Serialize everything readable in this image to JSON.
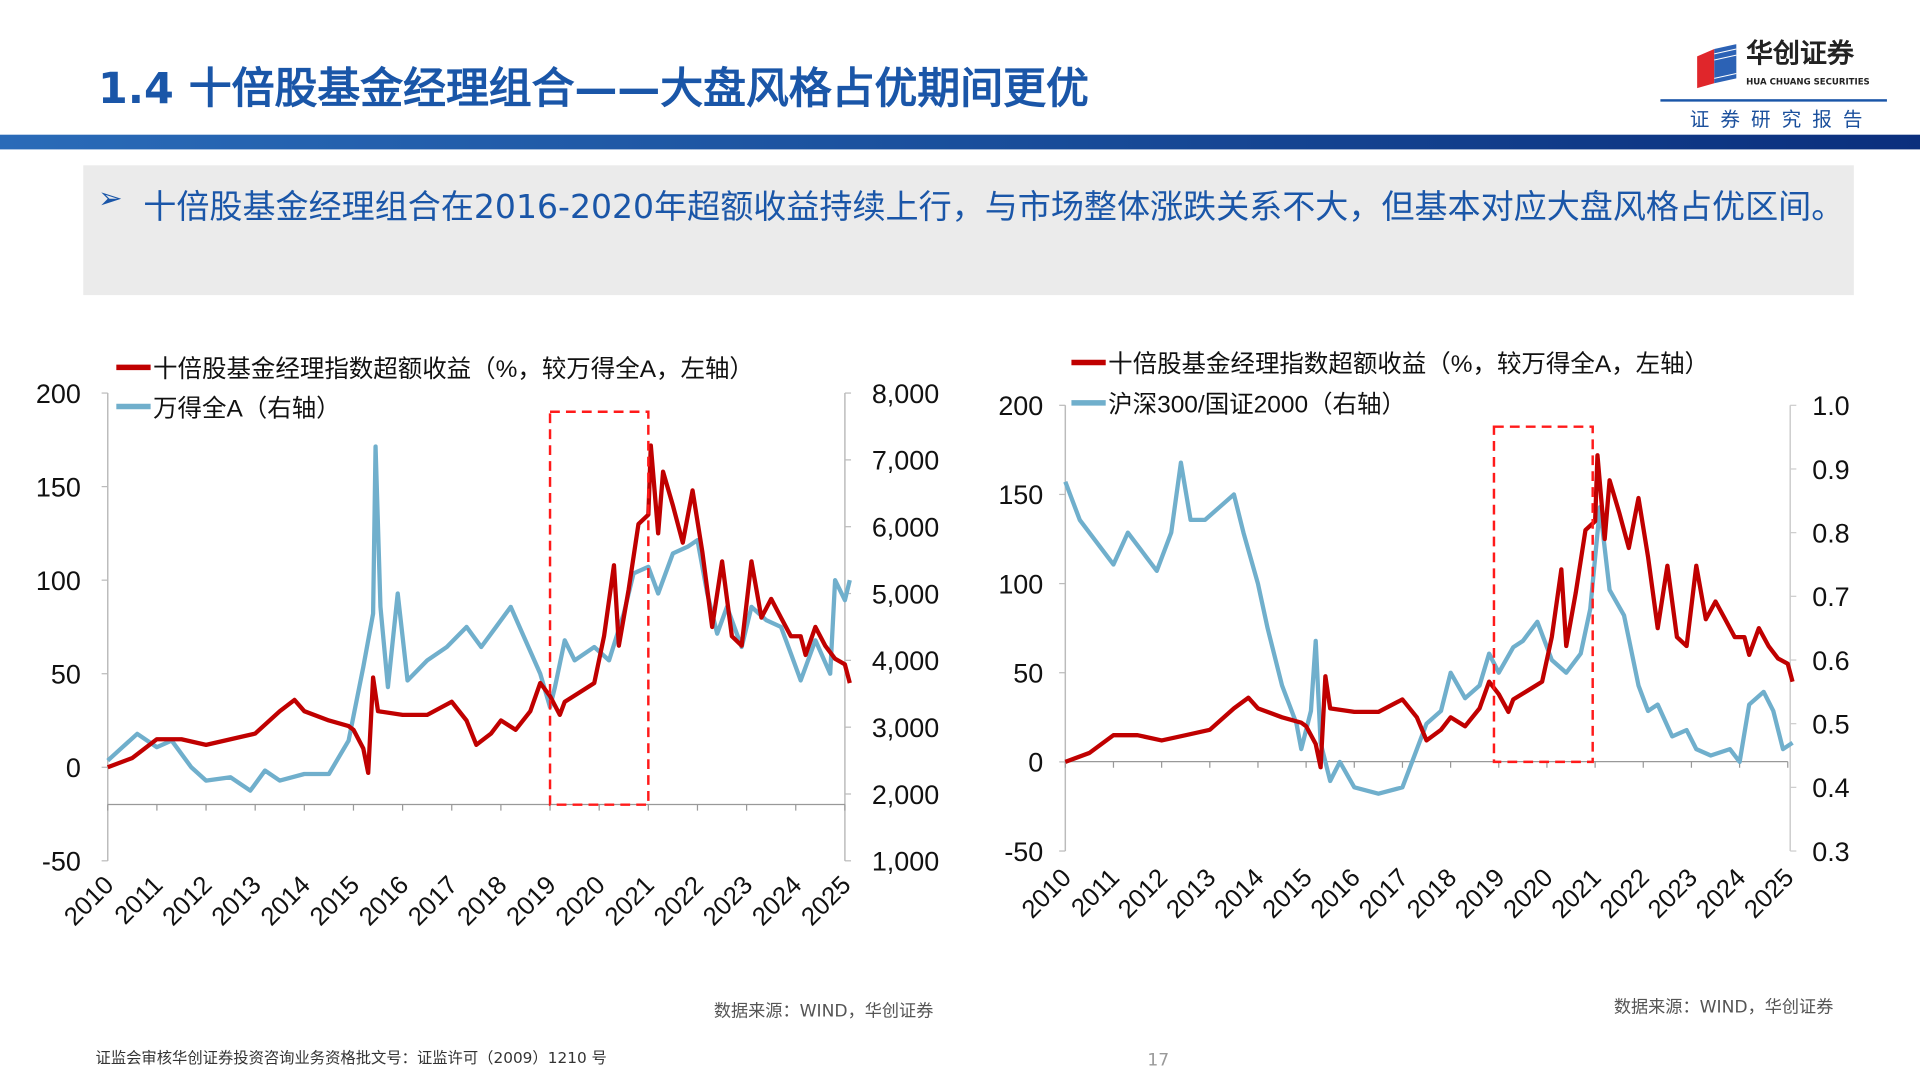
{
  "header": {
    "title": "1.4 十倍股基金经理组合——大盘风格占优期间更优",
    "logo_cn": "华创证券",
    "logo_en": "HUA CHUANG SECURITIES",
    "report_label": "证券研究报告",
    "brand_color": "#1a56a8"
  },
  "summary": {
    "bullet_icon": "arrow-bullet-icon",
    "text": "十倍股基金经理组合在2016-2020年超额收益持续上行，与市场整体涨跌关系不大，但基本对应大盘风格占优区间。"
  },
  "footer": {
    "license": "证监会审核华创证券投资咨询业务资格批文号：证监许可（2009）1210 号",
    "page_number": "17"
  },
  "chart_data": [
    {
      "type": "line",
      "source": "数据来源：WIND，华创证券",
      "x_ticks": [
        "2010",
        "2011",
        "2012",
        "2013",
        "2014",
        "2015",
        "2016",
        "2017",
        "2018",
        "2019",
        "2020",
        "2021",
        "2022",
        "2023",
        "2024",
        "2025"
      ],
      "y_left": {
        "ticks": [
          "200",
          "150",
          "100",
          "50",
          "0",
          "-50"
        ],
        "range": [
          -50,
          200
        ]
      },
      "y_right": {
        "ticks": [
          "8,000",
          "7,000",
          "6,000",
          "5,000",
          "4,000",
          "3,000",
          "2,000",
          "1,000"
        ],
        "range": [
          1000,
          8000
        ]
      },
      "highlight_x_range": [
        2019.0,
        2021.0
      ],
      "series": [
        {
          "name": "十倍股基金经理指数超额收益（%，较万得全A，左轴）",
          "axis": "left",
          "color": "#c00000",
          "x": [
            2010.0,
            2010.5,
            2011.0,
            2011.5,
            2012.0,
            2012.5,
            2013.0,
            2013.5,
            2013.8,
            2014.0,
            2014.5,
            2014.9,
            2015.0,
            2015.2,
            2015.3,
            2015.4,
            2015.5,
            2016.0,
            2016.5,
            2017.0,
            2017.3,
            2017.5,
            2017.8,
            2018.0,
            2018.3,
            2018.6,
            2018.8,
            2019.0,
            2019.2,
            2019.3,
            2019.6,
            2019.9,
            2020.1,
            2020.3,
            2020.4,
            2020.6,
            2020.8,
            2021.0,
            2021.05,
            2021.2,
            2021.3,
            2021.5,
            2021.7,
            2021.9,
            2022.1,
            2022.3,
            2022.5,
            2022.7,
            2022.9,
            2023.1,
            2023.3,
            2023.5,
            2023.7,
            2023.9,
            2024.1,
            2024.2,
            2024.4,
            2024.6,
            2024.8,
            2025.0,
            2025.1
          ],
          "y": [
            0,
            5,
            15,
            15,
            12,
            15,
            18,
            30,
            36,
            30,
            25,
            22,
            20,
            10,
            -3,
            48,
            30,
            28,
            28,
            35,
            25,
            12,
            18,
            25,
            20,
            30,
            45,
            38,
            28,
            35,
            40,
            45,
            70,
            108,
            65,
            95,
            130,
            135,
            172,
            125,
            158,
            140,
            120,
            148,
            115,
            75,
            110,
            70,
            65,
            110,
            80,
            90,
            80,
            70,
            70,
            60,
            75,
            65,
            58,
            55,
            45
          ]
        },
        {
          "name": "万得全A（右轴）",
          "axis": "right",
          "color": "#70afcc",
          "x": [
            2010.0,
            2010.3,
            2010.6,
            2011.0,
            2011.3,
            2011.7,
            2012.0,
            2012.5,
            2012.9,
            2013.2,
            2013.5,
            2014.0,
            2014.5,
            2014.9,
            2015.2,
            2015.4,
            2015.45,
            2015.55,
            2015.7,
            2015.9,
            2016.1,
            2016.5,
            2016.9,
            2017.3,
            2017.6,
            2017.9,
            2018.2,
            2018.5,
            2018.8,
            2019.0,
            2019.1,
            2019.3,
            2019.5,
            2019.9,
            2020.2,
            2020.5,
            2020.7,
            2021.0,
            2021.2,
            2021.5,
            2021.8,
            2022.0,
            2022.2,
            2022.4,
            2022.6,
            2022.9,
            2023.1,
            2023.4,
            2023.7,
            2023.9,
            2024.1,
            2024.4,
            2024.7,
            2024.8,
            2025.0,
            2025.1
          ],
          "y": [
            2500,
            2700,
            2900,
            2700,
            2800,
            2400,
            2200,
            2250,
            2050,
            2350,
            2200,
            2300,
            2300,
            2800,
            3900,
            4700,
            7200,
            4800,
            3600,
            5000,
            3700,
            4000,
            4200,
            4500,
            4200,
            4500,
            4800,
            4300,
            3800,
            3300,
            3600,
            4300,
            4000,
            4200,
            4000,
            4700,
            5300,
            5400,
            5000,
            5600,
            5700,
            5800,
            5000,
            4400,
            4800,
            4200,
            4800,
            4600,
            4500,
            4100,
            3700,
            4300,
            3800,
            5200,
            4900,
            5200
          ]
        }
      ]
    },
    {
      "type": "line",
      "source": "数据来源：WIND，华创证券",
      "x_ticks": [
        "2010",
        "2011",
        "2012",
        "2013",
        "2014",
        "2015",
        "2016",
        "2017",
        "2018",
        "2019",
        "2020",
        "2021",
        "2022",
        "2023",
        "2024",
        "2025"
      ],
      "y_left": {
        "ticks": [
          "200",
          "150",
          "100",
          "50",
          "0",
          "-50"
        ],
        "range": [
          -50,
          200
        ]
      },
      "y_right": {
        "ticks": [
          "1.0",
          "0.9",
          "0.8",
          "0.7",
          "0.6",
          "0.5",
          "0.4",
          "0.3"
        ],
        "range": [
          0.3,
          1.0
        ]
      },
      "highlight_x_range": [
        2018.9,
        2020.95
      ],
      "series": [
        {
          "name": "十倍股基金经理指数超额收益（%，较万得全A，左轴）",
          "axis": "left",
          "color": "#c00000",
          "x": [
            2010.0,
            2010.5,
            2011.0,
            2011.5,
            2012.0,
            2012.5,
            2013.0,
            2013.5,
            2013.8,
            2014.0,
            2014.5,
            2014.9,
            2015.0,
            2015.2,
            2015.3,
            2015.4,
            2015.5,
            2016.0,
            2016.5,
            2017.0,
            2017.3,
            2017.5,
            2017.8,
            2018.0,
            2018.3,
            2018.6,
            2018.8,
            2019.0,
            2019.2,
            2019.3,
            2019.6,
            2019.9,
            2020.1,
            2020.3,
            2020.4,
            2020.6,
            2020.8,
            2021.0,
            2021.05,
            2021.2,
            2021.3,
            2021.5,
            2021.7,
            2021.9,
            2022.1,
            2022.3,
            2022.5,
            2022.7,
            2022.9,
            2023.1,
            2023.3,
            2023.5,
            2023.7,
            2023.9,
            2024.1,
            2024.2,
            2024.4,
            2024.6,
            2024.8,
            2025.0,
            2025.1
          ],
          "y": [
            0,
            5,
            15,
            15,
            12,
            15,
            18,
            30,
            36,
            30,
            25,
            22,
            20,
            10,
            -3,
            48,
            30,
            28,
            28,
            35,
            25,
            12,
            18,
            25,
            20,
            30,
            45,
            38,
            28,
            35,
            40,
            45,
            70,
            108,
            65,
            95,
            130,
            135,
            172,
            125,
            158,
            140,
            120,
            148,
            115,
            75,
            110,
            70,
            65,
            110,
            80,
            90,
            80,
            70,
            70,
            60,
            75,
            65,
            58,
            55,
            45
          ]
        },
        {
          "name": "沪深300/国证2000（右轴）",
          "axis": "right",
          "color": "#70afcc",
          "x": [
            2010.0,
            2010.3,
            2010.6,
            2011.0,
            2011.3,
            2011.6,
            2011.9,
            2012.2,
            2012.4,
            2012.6,
            2012.9,
            2013.2,
            2013.5,
            2013.7,
            2014.0,
            2014.2,
            2014.5,
            2014.8,
            2014.9,
            2015.1,
            2015.2,
            2015.3,
            2015.5,
            2015.7,
            2016.0,
            2016.5,
            2017.0,
            2017.2,
            2017.5,
            2017.8,
            2018.0,
            2018.3,
            2018.6,
            2018.8,
            2019.0,
            2019.3,
            2019.5,
            2019.8,
            2020.1,
            2020.4,
            2020.7,
            2020.9,
            2021.1,
            2021.3,
            2021.6,
            2021.9,
            2022.1,
            2022.3,
            2022.6,
            2022.9,
            2023.1,
            2023.4,
            2023.8,
            2024.0,
            2024.2,
            2024.5,
            2024.7,
            2024.9,
            2025.1
          ],
          "y": [
            0.88,
            0.82,
            0.79,
            0.75,
            0.8,
            0.77,
            0.74,
            0.8,
            0.91,
            0.82,
            0.82,
            0.84,
            0.86,
            0.8,
            0.72,
            0.65,
            0.56,
            0.5,
            0.46,
            0.52,
            0.63,
            0.47,
            0.41,
            0.44,
            0.4,
            0.39,
            0.4,
            0.44,
            0.5,
            0.52,
            0.58,
            0.54,
            0.56,
            0.61,
            0.58,
            0.62,
            0.63,
            0.66,
            0.6,
            0.58,
            0.61,
            0.68,
            0.84,
            0.71,
            0.67,
            0.56,
            0.52,
            0.53,
            0.48,
            0.49,
            0.46,
            0.45,
            0.46,
            0.44,
            0.53,
            0.55,
            0.52,
            0.46,
            0.47
          ]
        }
      ]
    }
  ]
}
